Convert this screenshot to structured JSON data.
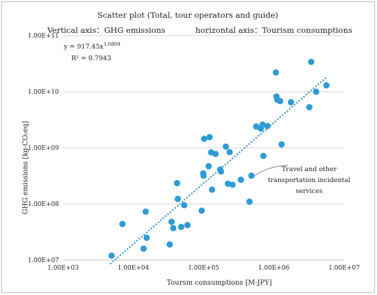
{
  "chart_data": {
    "type": "scatter",
    "title": "Scatter plot (Total, tour operators and guide)",
    "subtitle_left": "Vertical axis：GHG emissions",
    "subtitle_right": "horizontal axis：Tourism consumptions",
    "xlabel": "Toursm consumptions [M-JPY]",
    "ylabel": "GHG emissions [kg-CO₂eq]",
    "x_scale": "log",
    "y_scale": "log",
    "xlim": [
      1000,
      10000000
    ],
    "ylim": [
      10000000,
      100000000000
    ],
    "x_ticks": [
      1000,
      10000,
      100000,
      1000000,
      10000000
    ],
    "x_tick_labels": [
      "1.00E+03",
      "1.00E+04",
      "1.00E+05",
      "1.00E+06",
      "1.00E+07"
    ],
    "y_ticks": [
      10000000,
      100000000,
      1000000000,
      10000000000,
      100000000000
    ],
    "y_tick_labels": [
      "1.00E+07",
      "1.00E+08",
      "1.00E+09",
      "1.00E+10",
      "1.00E+11"
    ],
    "grid": "horizontal",
    "point_color": "#2e9bd6",
    "trend_color": "#2a8ccf",
    "equation_text": "y = 917.45x",
    "equation_exponent": "1.0809",
    "r2_text": "R² = 0.7943",
    "trendline": {
      "type": "power",
      "a": 917.45,
      "b": 1.0809,
      "x_range": [
        4700,
        5600000
      ]
    },
    "annotation": {
      "lines": [
        "Travel and other",
        "transportation incidental",
        "services"
      ],
      "point": [
        480000,
        320000000
      ]
    },
    "points": [
      [
        4900,
        12000000
      ],
      [
        7000,
        44000000
      ],
      [
        14000,
        16000000
      ],
      [
        15000,
        73000000
      ],
      [
        15500,
        25000000
      ],
      [
        33000,
        19000000
      ],
      [
        35000,
        48000000
      ],
      [
        37000,
        37000000
      ],
      [
        42000,
        235000000
      ],
      [
        43000,
        123000000
      ],
      [
        48000,
        39000000
      ],
      [
        53000,
        95000000
      ],
      [
        59000,
        42000000
      ],
      [
        94000,
        76000000
      ],
      [
        99000,
        350000000
      ],
      [
        100000,
        320000000
      ],
      [
        102000,
        1450000000
      ],
      [
        118000,
        470000000
      ],
      [
        122000,
        1550000000
      ],
      [
        128000,
        830000000
      ],
      [
        132000,
        180000000
      ],
      [
        148000,
        780000000
      ],
      [
        172000,
        410000000
      ],
      [
        177000,
        380000000
      ],
      [
        208000,
        1050000000
      ],
      [
        222000,
        230000000
      ],
      [
        235000,
        840000000
      ],
      [
        258000,
        220000000
      ],
      [
        340000,
        270000000
      ],
      [
        450000,
        110000000
      ],
      [
        480000,
        320000000
      ],
      [
        560000,
        2400000000
      ],
      [
        650000,
        2200000000
      ],
      [
        690000,
        2600000000
      ],
      [
        710000,
        720000000
      ],
      [
        810000,
        2450000000
      ],
      [
        1070000,
        22000000000
      ],
      [
        1090000,
        8200000000
      ],
      [
        1120000,
        7200000000
      ],
      [
        1230000,
        6800000000
      ],
      [
        1290000,
        1150000000
      ],
      [
        1750000,
        6500000000
      ],
      [
        3200000,
        5300000000
      ],
      [
        3400000,
        34000000000
      ],
      [
        4000000,
        10000000000
      ],
      [
        5600000,
        13000000000
      ]
    ]
  }
}
